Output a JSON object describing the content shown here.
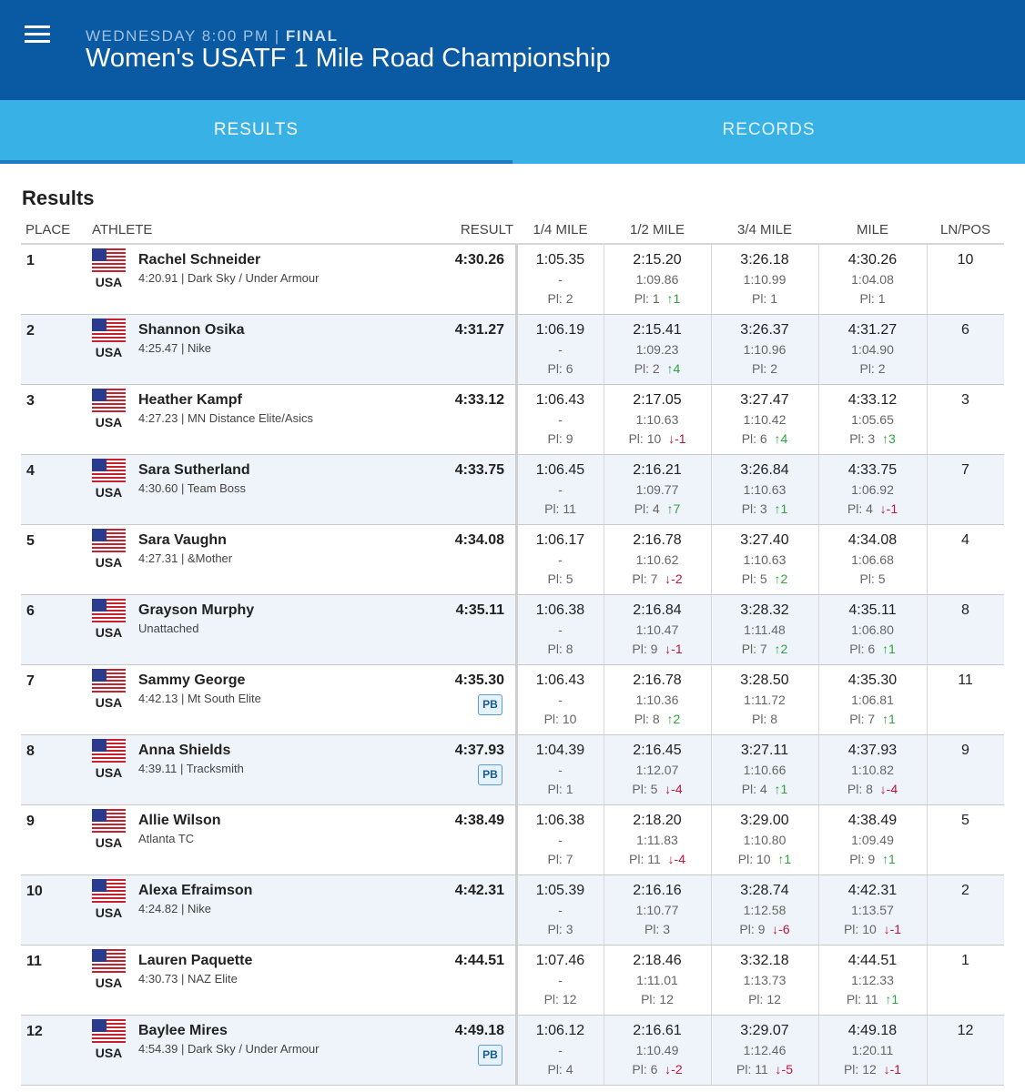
{
  "header": {
    "meta": "WEDNESDAY 8:00 PM |",
    "status": "FINAL",
    "title": "Women's USATF 1 Mile Road Championship"
  },
  "tabs": [
    {
      "label": "RESULTS",
      "active": true
    },
    {
      "label": "RECORDS",
      "active": false
    }
  ],
  "section_title": "Results",
  "columns": {
    "place": "PLACE",
    "athlete": "ATHLETE",
    "result": "RESULT",
    "q1": "1/4 MILE",
    "q2": "1/2 MILE",
    "q3": "3/4 MILE",
    "mile": "MILE",
    "lnpos": "LN/POS"
  },
  "rows": [
    {
      "place": "1",
      "country": "USA",
      "name": "Rachel Schneider",
      "info": "4:20.91 | Dark Sky / Under Armour",
      "result": "4:30.26",
      "pb": "",
      "lnpos": "10",
      "splits": [
        {
          "t": "1:05.35",
          "l": "-",
          "p": "Pl: 2",
          "dir": "",
          "d": ""
        },
        {
          "t": "2:15.20",
          "l": "1:09.86",
          "p": "Pl: 1",
          "dir": "up",
          "d": "1"
        },
        {
          "t": "3:26.18",
          "l": "1:10.99",
          "p": "Pl: 1",
          "dir": "",
          "d": ""
        },
        {
          "t": "4:30.26",
          "l": "1:04.08",
          "p": "Pl: 1",
          "dir": "",
          "d": ""
        }
      ]
    },
    {
      "place": "2",
      "country": "USA",
      "name": "Shannon Osika",
      "info": "4:25.47 | Nike",
      "result": "4:31.27",
      "pb": "",
      "lnpos": "6",
      "splits": [
        {
          "t": "1:06.19",
          "l": "-",
          "p": "Pl: 6",
          "dir": "",
          "d": ""
        },
        {
          "t": "2:15.41",
          "l": "1:09.23",
          "p": "Pl: 2",
          "dir": "up",
          "d": "4"
        },
        {
          "t": "3:26.37",
          "l": "1:10.96",
          "p": "Pl: 2",
          "dir": "",
          "d": ""
        },
        {
          "t": "4:31.27",
          "l": "1:04.90",
          "p": "Pl: 2",
          "dir": "",
          "d": ""
        }
      ]
    },
    {
      "place": "3",
      "country": "USA",
      "name": "Heather Kampf",
      "info": "4:27.23 | MN Distance Elite/Asics",
      "result": "4:33.12",
      "pb": "",
      "lnpos": "3",
      "splits": [
        {
          "t": "1:06.43",
          "l": "-",
          "p": "Pl: 9",
          "dir": "",
          "d": ""
        },
        {
          "t": "2:17.05",
          "l": "1:10.63",
          "p": "Pl: 10",
          "dir": "down",
          "d": "-1"
        },
        {
          "t": "3:27.47",
          "l": "1:10.42",
          "p": "Pl: 6",
          "dir": "up",
          "d": "4"
        },
        {
          "t": "4:33.12",
          "l": "1:05.65",
          "p": "Pl: 3",
          "dir": "up",
          "d": "3"
        }
      ]
    },
    {
      "place": "4",
      "country": "USA",
      "name": "Sara Sutherland",
      "info": "4:30.60 | Team Boss",
      "result": "4:33.75",
      "pb": "",
      "lnpos": "7",
      "splits": [
        {
          "t": "1:06.45",
          "l": "-",
          "p": "Pl: 11",
          "dir": "",
          "d": ""
        },
        {
          "t": "2:16.21",
          "l": "1:09.77",
          "p": "Pl: 4",
          "dir": "up",
          "d": "7"
        },
        {
          "t": "3:26.84",
          "l": "1:10.63",
          "p": "Pl: 3",
          "dir": "up",
          "d": "1"
        },
        {
          "t": "4:33.75",
          "l": "1:06.92",
          "p": "Pl: 4",
          "dir": "down",
          "d": "-1"
        }
      ]
    },
    {
      "place": "5",
      "country": "USA",
      "name": "Sara Vaughn",
      "info": "4:27.31 | &Mother",
      "result": "4:34.08",
      "pb": "",
      "lnpos": "4",
      "splits": [
        {
          "t": "1:06.17",
          "l": "-",
          "p": "Pl: 5",
          "dir": "",
          "d": ""
        },
        {
          "t": "2:16.78",
          "l": "1:10.62",
          "p": "Pl: 7",
          "dir": "down",
          "d": "-2"
        },
        {
          "t": "3:27.40",
          "l": "1:10.63",
          "p": "Pl: 5",
          "dir": "up",
          "d": "2"
        },
        {
          "t": "4:34.08",
          "l": "1:06.68",
          "p": "Pl: 5",
          "dir": "",
          "d": ""
        }
      ]
    },
    {
      "place": "6",
      "country": "USA",
      "name": "Grayson Murphy",
      "info": "Unattached",
      "result": "4:35.11",
      "pb": "",
      "lnpos": "8",
      "splits": [
        {
          "t": "1:06.38",
          "l": "-",
          "p": "Pl: 8",
          "dir": "",
          "d": ""
        },
        {
          "t": "2:16.84",
          "l": "1:10.47",
          "p": "Pl: 9",
          "dir": "down",
          "d": "-1"
        },
        {
          "t": "3:28.32",
          "l": "1:11.48",
          "p": "Pl: 7",
          "dir": "up",
          "d": "2"
        },
        {
          "t": "4:35.11",
          "l": "1:06.80",
          "p": "Pl: 6",
          "dir": "up",
          "d": "1"
        }
      ]
    },
    {
      "place": "7",
      "country": "USA",
      "name": "Sammy George",
      "info": "4:42.13 | Mt South Elite",
      "result": "4:35.30",
      "pb": "PB",
      "lnpos": "11",
      "splits": [
        {
          "t": "1:06.43",
          "l": "-",
          "p": "Pl: 10",
          "dir": "",
          "d": ""
        },
        {
          "t": "2:16.78",
          "l": "1:10.36",
          "p": "Pl: 8",
          "dir": "up",
          "d": "2"
        },
        {
          "t": "3:28.50",
          "l": "1:11.72",
          "p": "Pl: 8",
          "dir": "",
          "d": ""
        },
        {
          "t": "4:35.30",
          "l": "1:06.81",
          "p": "Pl: 7",
          "dir": "up",
          "d": "1"
        }
      ]
    },
    {
      "place": "8",
      "country": "USA",
      "name": "Anna Shields",
      "info": "4:39.11 | Tracksmith",
      "result": "4:37.93",
      "pb": "PB",
      "lnpos": "9",
      "splits": [
        {
          "t": "1:04.39",
          "l": "-",
          "p": "Pl: 1",
          "dir": "",
          "d": ""
        },
        {
          "t": "2:16.45",
          "l": "1:12.07",
          "p": "Pl: 5",
          "dir": "down",
          "d": "-4"
        },
        {
          "t": "3:27.11",
          "l": "1:10.66",
          "p": "Pl: 4",
          "dir": "up",
          "d": "1"
        },
        {
          "t": "4:37.93",
          "l": "1:10.82",
          "p": "Pl: 8",
          "dir": "down",
          "d": "-4"
        }
      ]
    },
    {
      "place": "9",
      "country": "USA",
      "name": "Allie Wilson",
      "info": "Atlanta TC",
      "result": "4:38.49",
      "pb": "",
      "lnpos": "5",
      "splits": [
        {
          "t": "1:06.38",
          "l": "-",
          "p": "Pl: 7",
          "dir": "",
          "d": ""
        },
        {
          "t": "2:18.20",
          "l": "1:11.83",
          "p": "Pl: 11",
          "dir": "down",
          "d": "-4"
        },
        {
          "t": "3:29.00",
          "l": "1:10.80",
          "p": "Pl: 10",
          "dir": "up",
          "d": "1"
        },
        {
          "t": "4:38.49",
          "l": "1:09.49",
          "p": "Pl: 9",
          "dir": "up",
          "d": "1"
        }
      ]
    },
    {
      "place": "10",
      "country": "USA",
      "name": "Alexa Efraimson",
      "info": "4:24.82 | Nike",
      "result": "4:42.31",
      "pb": "",
      "lnpos": "2",
      "splits": [
        {
          "t": "1:05.39",
          "l": "-",
          "p": "Pl: 3",
          "dir": "",
          "d": ""
        },
        {
          "t": "2:16.16",
          "l": "1:10.77",
          "p": "Pl: 3",
          "dir": "",
          "d": ""
        },
        {
          "t": "3:28.74",
          "l": "1:12.58",
          "p": "Pl: 9",
          "dir": "down",
          "d": "-6"
        },
        {
          "t": "4:42.31",
          "l": "1:13.57",
          "p": "Pl: 10",
          "dir": "down",
          "d": "-1"
        }
      ]
    },
    {
      "place": "11",
      "country": "USA",
      "name": "Lauren Paquette",
      "info": "4:30.73 | NAZ Elite",
      "result": "4:44.51",
      "pb": "",
      "lnpos": "1",
      "splits": [
        {
          "t": "1:07.46",
          "l": "-",
          "p": "Pl: 12",
          "dir": "",
          "d": ""
        },
        {
          "t": "2:18.46",
          "l": "1:11.01",
          "p": "Pl: 12",
          "dir": "",
          "d": ""
        },
        {
          "t": "3:32.18",
          "l": "1:13.73",
          "p": "Pl: 12",
          "dir": "",
          "d": ""
        },
        {
          "t": "4:44.51",
          "l": "1:12.33",
          "p": "Pl: 11",
          "dir": "up",
          "d": "1"
        }
      ]
    },
    {
      "place": "12",
      "country": "USA",
      "name": "Baylee Mires",
      "info": "4:54.39 | Dark Sky / Under Armour",
      "result": "4:49.18",
      "pb": "PB",
      "lnpos": "12",
      "splits": [
        {
          "t": "1:06.12",
          "l": "-",
          "p": "Pl: 4",
          "dir": "",
          "d": ""
        },
        {
          "t": "2:16.61",
          "l": "1:10.49",
          "p": "Pl: 6",
          "dir": "down",
          "d": "-2"
        },
        {
          "t": "3:29.07",
          "l": "1:12.46",
          "p": "Pl: 11",
          "dir": "down",
          "d": "-5"
        },
        {
          "t": "4:49.18",
          "l": "1:20.11",
          "p": "Pl: 12",
          "dir": "down",
          "d": "-1"
        }
      ]
    }
  ]
}
